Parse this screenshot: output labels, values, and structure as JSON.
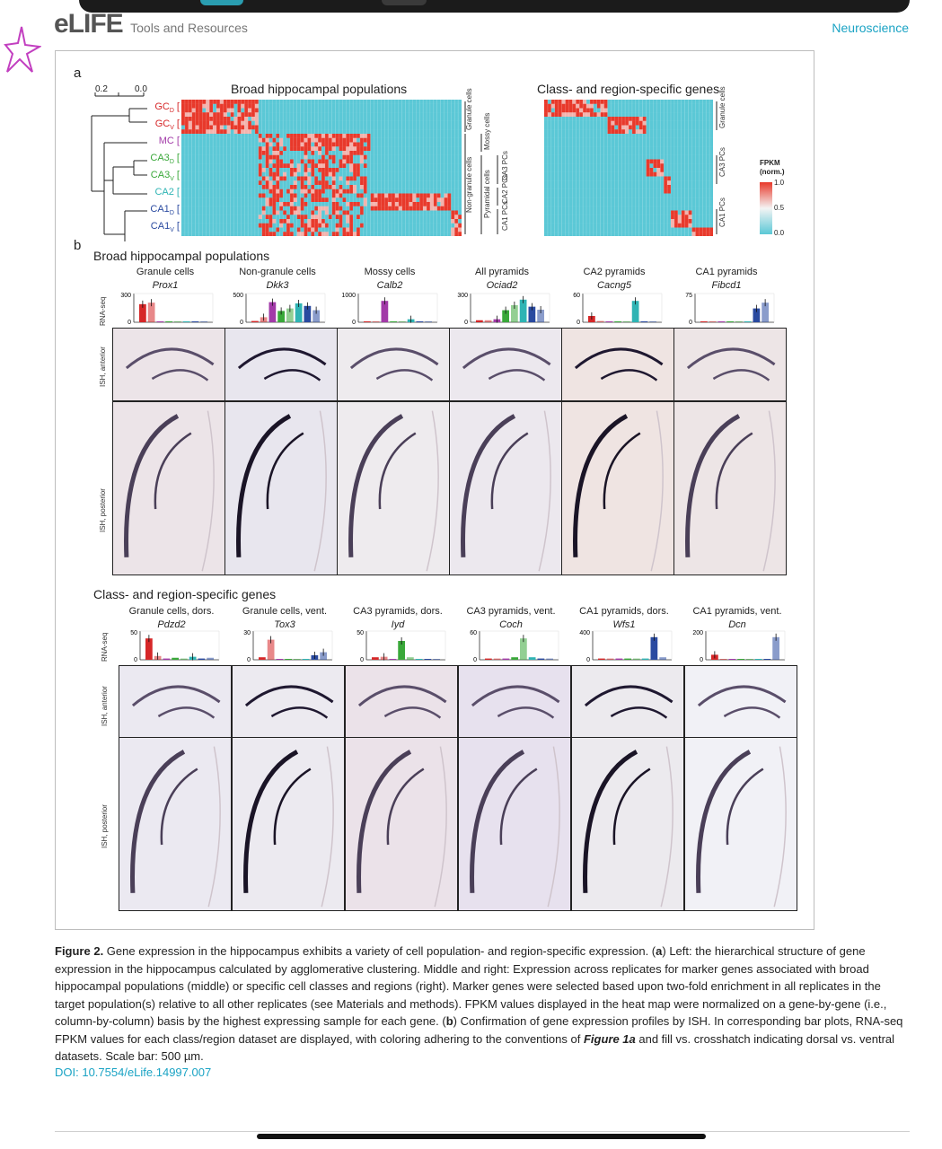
{
  "header": {
    "brand": "eLIFE",
    "section": "Tools and Resources",
    "subject": "Neuroscience"
  },
  "figure": {
    "panel_a": {
      "letter": "a",
      "left_title": "Broad hippocampal populations",
      "right_title": "Class- and region-specific genes",
      "scale_left": "0.2",
      "scale_right": "0.0",
      "rows": [
        {
          "label": "GC",
          "sub": "D",
          "color": "#d62728"
        },
        {
          "label": "GC",
          "sub": "V",
          "color": "#d62728"
        },
        {
          "label": "MC",
          "sub": "",
          "color": "#a23aa8"
        },
        {
          "label": "CA3",
          "sub": "D",
          "color": "#3aa83a"
        },
        {
          "label": "CA3",
          "sub": "V",
          "color": "#3aa83a"
        },
        {
          "label": "CA2",
          "sub": "",
          "color": "#2fb4b4"
        },
        {
          "label": "CA1",
          "sub": "D",
          "color": "#2a4aa0"
        },
        {
          "label": "CA1",
          "sub": "V",
          "color": "#2a4aa0"
        }
      ],
      "brackets_left": [
        "Granule cells",
        "Mossy cells",
        "Non-granule cells",
        "Pyramidal cells",
        "CA3 PCs",
        "CA2 PCs",
        "CA1 PCs"
      ],
      "brackets_right": [
        "Granule cells",
        "CA3 PCs",
        "CA1 PCs"
      ],
      "colorbar": {
        "title1": "FPKM",
        "title2": "(norm.)",
        "ticks": [
          "1.0",
          "0.5",
          "0.0"
        ],
        "high": "#e8392b",
        "low": "#5bc8d6"
      }
    },
    "panel_b": {
      "letter": "b",
      "group1_title": "Broad hippocampal populations",
      "group2_title": "Class- and region-specific genes",
      "row_labels": {
        "rnaseq": "RNA-seq",
        "anterior": "ISH, anterior",
        "posterior": "ISH, posterior"
      },
      "group1": [
        {
          "title": "Granule cells",
          "gene": "Prox1",
          "ymax": "300",
          "values": [
            0.72,
            0.78,
            0.02,
            0.02,
            0.02,
            0.02,
            0.02,
            0.02
          ]
        },
        {
          "title": "Non-granule cells",
          "gene": "Dkk3",
          "ymax": "500",
          "values": [
            0.05,
            0.2,
            0.8,
            0.45,
            0.55,
            0.75,
            0.65,
            0.48
          ]
        },
        {
          "title": "Mossy cells",
          "gene": "Calb2",
          "ymax": "1000",
          "values": [
            0.02,
            0.02,
            0.85,
            0.02,
            0.02,
            0.12,
            0.02,
            0.02
          ]
        },
        {
          "title": "All pyramids",
          "gene": "Ociad2",
          "ymax": "300",
          "values": [
            0.08,
            0.08,
            0.12,
            0.48,
            0.68,
            0.9,
            0.62,
            0.5
          ]
        },
        {
          "title": "CA2 pyramids",
          "gene": "Cacng5",
          "ymax": "60",
          "values": [
            0.25,
            0.05,
            0.02,
            0.02,
            0.02,
            0.85,
            0.02,
            0.02
          ]
        },
        {
          "title": "CA1 pyramids",
          "gene": "Fibcd1",
          "ymax": "75",
          "values": [
            0.02,
            0.02,
            0.02,
            0.02,
            0.02,
            0.02,
            0.55,
            0.78
          ]
        }
      ],
      "group2": [
        {
          "title": "Granule cells, dors.",
          "gene": "Pdzd2",
          "ymax": "50",
          "values": [
            0.85,
            0.15,
            0.05,
            0.08,
            0.05,
            0.12,
            0.05,
            0.08
          ]
        },
        {
          "title": "Granule cells, vent.",
          "gene": "Tox3",
          "ymax": "30",
          "values": [
            0.1,
            0.8,
            0.02,
            0.02,
            0.02,
            0.02,
            0.18,
            0.3
          ]
        },
        {
          "title": "CA3 pyramids, dors.",
          "gene": "Iyd",
          "ymax": "50",
          "values": [
            0.1,
            0.12,
            0.02,
            0.75,
            0.1,
            0.02,
            0.02,
            0.02
          ]
        },
        {
          "title": "CA3 pyramids, vent.",
          "gene": "Coch",
          "ymax": "60",
          "values": [
            0.05,
            0.05,
            0.05,
            0.1,
            0.85,
            0.1,
            0.05,
            0.05
          ]
        },
        {
          "title": "CA1 pyramids, dors.",
          "gene": "Wfs1",
          "ymax": "400",
          "values": [
            0.05,
            0.05,
            0.05,
            0.05,
            0.05,
            0.05,
            0.9,
            0.1
          ]
        },
        {
          "title": "CA1 pyramids, vent.",
          "gene": "Dcn",
          "ymax": "200",
          "values": [
            0.2,
            0.02,
            0.02,
            0.02,
            0.02,
            0.02,
            0.02,
            0.9
          ]
        }
      ],
      "bar_colors": [
        "#d62728",
        "#d62728",
        "#a23aa8",
        "#3aa83a",
        "#3aa83a",
        "#2fb4b4",
        "#2a4aa0",
        "#2a4aa0"
      ]
    }
  },
  "caption": {
    "label": "Figure 2.",
    "text1": " Gene expression in the hippocampus exhibits a variety of cell population- and region-specific expression. (",
    "a": "a",
    "text2": ") Left: the hierarchical structure of gene expression in the hippocampus calculated by agglomerative clustering. Middle and right: Expression across replicates for marker genes associated with broad hippocampal populations (middle) or specific cell classes and regions (right). Marker genes were selected based upon two-fold enrichment in all replicates in the target population(s) relative to all other replicates (see Materials and methods). FPKM values displayed in the heat map were normalized on a gene-by-gene (i.e., column-by-column) basis by the highest expressing sample for each gene. (",
    "b": "b",
    "text3": ") Confirmation of gene expression profiles by ISH. In corresponding bar plots, RNA-seq FPKM values for each class/region dataset are displayed, with coloring adhering to the conventions of ",
    "ref": "Figure 1a",
    "text4": " and fill vs. crosshatch indicating dorsal vs. ventral datasets. Scale bar: 500 µm.",
    "doi": "DOI: 10.7554/eLife.14997.007"
  }
}
